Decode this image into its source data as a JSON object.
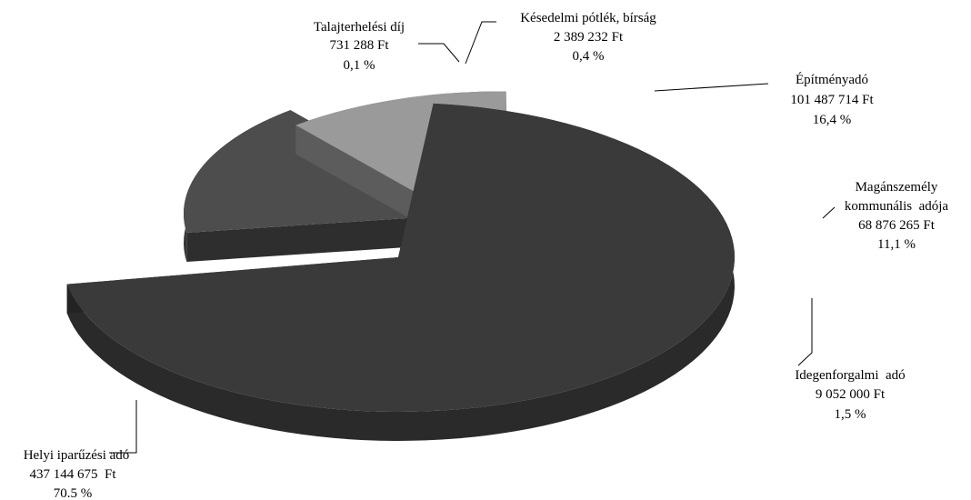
{
  "chart_data": {
    "type": "pie",
    "title": "",
    "style": "3d-exploded",
    "slices": [
      {
        "name": "Helyi iparűzési adó",
        "value_text": "437 144 675  Ft",
        "percent_text": "70.5 %",
        "value": 437144675,
        "percent": 70.5,
        "color": "#3a3a3a"
      },
      {
        "name": "Talajterhelési díj",
        "value_text": "731 288 Ft",
        "percent_text": "0,1 %",
        "value": 731288,
        "percent": 0.1,
        "color": "#bdbdbd"
      },
      {
        "name": "Késedelmi pótlék, bírság",
        "value_text": "2 389 232 Ft",
        "percent_text": "0,4 %",
        "value": 2389232,
        "percent": 0.4,
        "color": "#a9a9a9"
      },
      {
        "name": "Építményadó",
        "value_text": "101 487 714 Ft",
        "percent_text": "16,4 %",
        "value": 101487714,
        "percent": 16.4,
        "color": "#4d4d4d"
      },
      {
        "name": "Magánszemély kommunális  adója",
        "name_lines": [
          "Magánszemély",
          "kommunális  adója"
        ],
        "value_text": "68 876 265 Ft",
        "percent_text": "11,1 %",
        "value": 68876265,
        "percent": 11.1,
        "color": "#9a9a9a"
      },
      {
        "name": "Idegenforgalmi  adó",
        "value_text": "9 052 000 Ft",
        "percent_text": "1,5 %",
        "value": 9052000,
        "percent": 1.5,
        "color": "#5e5e5e"
      }
    ]
  }
}
